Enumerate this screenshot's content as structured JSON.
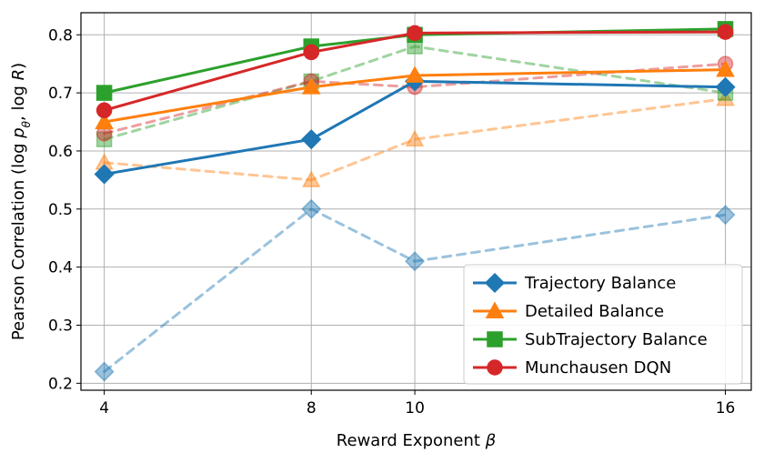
{
  "chart_data": {
    "type": "line",
    "xlabel": "Reward Exponent β",
    "ylabel": "Pearson Correlation (log p_θ, log R)",
    "ylabel_parts": [
      "Pearson Correlation (log ",
      "p",
      "θ",
      ", log ",
      "R",
      ")"
    ],
    "xlabel_parts": [
      "Reward Exponent ",
      "β"
    ],
    "x": [
      4,
      8,
      10,
      16
    ],
    "x_ticks": [
      "4",
      "8",
      "10",
      "16"
    ],
    "y_ticks": [
      "0.2",
      "0.3",
      "0.4",
      "0.5",
      "0.6",
      "0.7",
      "0.8"
    ],
    "xlim": [
      3.55,
      16.5
    ],
    "ylim": [
      0.188,
      0.838
    ],
    "grid": true,
    "legend_position": "lower-right",
    "series": [
      {
        "name": "Trajectory Balance",
        "color": "#1f77b4",
        "marker": "diamond",
        "style": "solid",
        "values": [
          0.56,
          0.62,
          0.72,
          0.71
        ]
      },
      {
        "name": "Detailed Balance",
        "color": "#ff7f0e",
        "marker": "triangle",
        "style": "solid",
        "values": [
          0.65,
          0.71,
          0.73,
          0.74
        ]
      },
      {
        "name": "SubTrajectory Balance",
        "color": "#2ca02c",
        "marker": "square",
        "style": "solid",
        "values": [
          0.7,
          0.78,
          0.8,
          0.81
        ]
      },
      {
        "name": "Munchausen DQN",
        "color": "#d62728",
        "marker": "circle",
        "style": "solid",
        "values": [
          0.67,
          0.77,
          0.803,
          0.805
        ]
      }
    ],
    "faded_series": [
      {
        "color": "#1f77b4",
        "marker": "diamond",
        "style": "dashed",
        "values": [
          0.22,
          0.5,
          0.41,
          0.49
        ]
      },
      {
        "color": "#ff7f0e",
        "marker": "triangle",
        "style": "dashed",
        "values": [
          0.58,
          0.55,
          0.62,
          0.69
        ]
      },
      {
        "color": "#2ca02c",
        "marker": "square",
        "style": "dashed",
        "values": [
          0.62,
          0.72,
          0.78,
          0.7
        ]
      },
      {
        "color": "#d62728",
        "marker": "circle",
        "style": "dashed",
        "values": [
          0.63,
          0.72,
          0.71,
          0.75
        ]
      }
    ]
  }
}
